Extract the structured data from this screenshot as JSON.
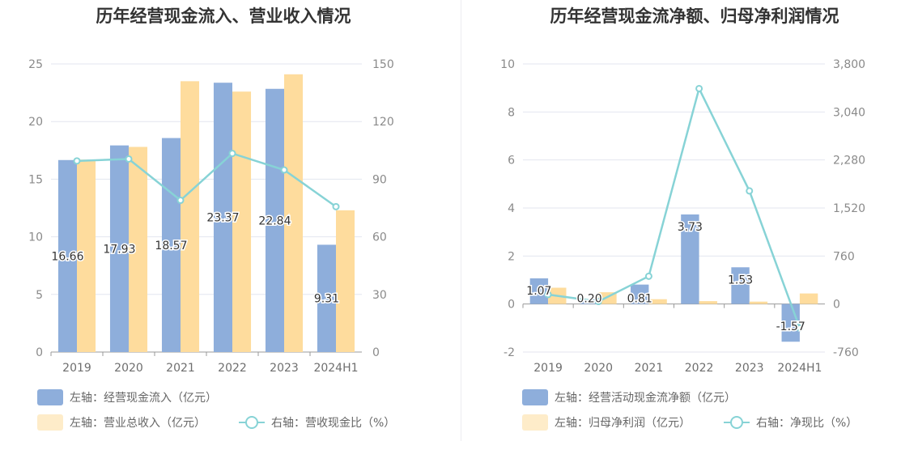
{
  "colors": {
    "bar1": "#8eaedb",
    "bar2": "#fedc9d",
    "line": "#87d3d6",
    "grid": "#e3e6ef",
    "axis": "#999999"
  },
  "chart_data": [
    {
      "type": "bar",
      "title": "历年经营现金流入、营业收入情况",
      "categories": [
        "2019",
        "2020",
        "2021",
        "2022",
        "2023",
        "2024H1"
      ],
      "left_axis": {
        "ticks": [
          "0",
          "5",
          "10",
          "15",
          "20",
          "25"
        ],
        "ylim": [
          0,
          25
        ]
      },
      "right_axis": {
        "ticks": [
          "0",
          "30",
          "60",
          "90",
          "120",
          "150"
        ],
        "ylim": [
          0,
          150
        ]
      },
      "series": [
        {
          "name": "左轴：经营现金流入（亿元）",
          "type": "bar",
          "axis": "left",
          "values": [
            16.66,
            17.93,
            18.57,
            23.37,
            22.84,
            9.31
          ],
          "labels": [
            "16.66",
            "17.93",
            "18.57",
            "23.37",
            "22.84",
            "9.31"
          ]
        },
        {
          "name": "左轴：营业总收入（亿元）",
          "type": "bar",
          "axis": "left",
          "values": [
            16.7,
            17.8,
            23.5,
            22.6,
            24.1,
            12.3
          ]
        },
        {
          "name": "右轴：营收现金比（%）",
          "type": "line",
          "axis": "right",
          "values": [
            99.5,
            100.5,
            79.0,
            103.4,
            94.8,
            75.7
          ]
        }
      ],
      "grid": true,
      "legend_position": "bottom"
    },
    {
      "type": "bar",
      "title": "历年经营现金流净额、归母净利润情况",
      "categories": [
        "2019",
        "2020",
        "2021",
        "2022",
        "2023",
        "2024H1"
      ],
      "left_axis": {
        "ticks": [
          "-2",
          "0",
          "2",
          "4",
          "6",
          "8",
          "10"
        ],
        "ylim": [
          -2,
          10
        ]
      },
      "right_axis": {
        "ticks": [
          "-760",
          "0",
          "760",
          "1,520",
          "2,280",
          "3,040",
          "3,800"
        ],
        "ylim": [
          -760,
          3800
        ]
      },
      "series": [
        {
          "name": "左轴：经营活动现金流净额（亿元）",
          "type": "bar",
          "axis": "left",
          "values": [
            1.07,
            0.2,
            0.81,
            3.73,
            1.53,
            -1.57
          ],
          "labels": [
            "1.07",
            "0.20",
            "0.81",
            "3.73",
            "1.53",
            "-1.57"
          ]
        },
        {
          "name": "左轴：归母净利润（亿元）",
          "type": "bar",
          "axis": "left",
          "values": [
            0.68,
            0.49,
            0.2,
            0.12,
            0.1,
            0.44
          ]
        },
        {
          "name": "右轴：净现比（%）",
          "type": "line",
          "axis": "right",
          "values": [
            150,
            40,
            440,
            3410,
            1790,
            -380
          ]
        }
      ],
      "grid": true,
      "legend_position": "bottom"
    }
  ]
}
